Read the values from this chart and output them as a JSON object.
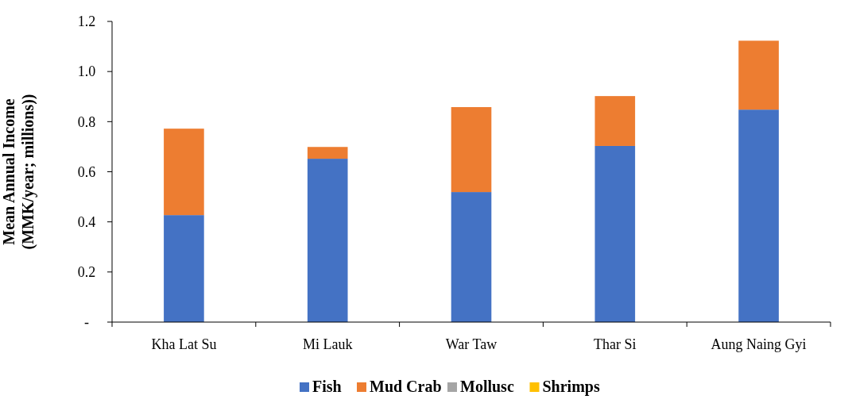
{
  "chart_data": {
    "type": "bar",
    "stacked": true,
    "ylabel": "Mean Annual Income (MMK/year; millions))",
    "categories": [
      "Kha Lat Su",
      "Mi Lauk",
      "War Taw",
      "Thar Si",
      "Aung Naing Gyi"
    ],
    "series": [
      {
        "name": "Fish",
        "color": "#4472c4",
        "values": [
          0.427,
          0.652,
          0.519,
          0.703,
          0.848
        ]
      },
      {
        "name": "Mud Crab",
        "color": "#ed7d31",
        "values": [
          0.345,
          0.047,
          0.339,
          0.199,
          0.275
        ]
      },
      {
        "name": "Mollusc",
        "color": "#a5a5a5",
        "values": [
          0,
          0,
          0,
          0,
          0
        ]
      },
      {
        "name": "Shrimps",
        "color": "#ffc000",
        "values": [
          0,
          0,
          0,
          0,
          0
        ]
      }
    ],
    "ylim": [
      0,
      1.2
    ],
    "yticks": [
      {
        "value": 0,
        "label": "-"
      },
      {
        "value": 0.2,
        "label": "0.2"
      },
      {
        "value": 0.4,
        "label": "0.4"
      },
      {
        "value": 0.6,
        "label": "0.6"
      },
      {
        "value": 0.8,
        "label": "0.8"
      },
      {
        "value": 1,
        "label": "1.0"
      },
      {
        "value": 1.2,
        "label": "1.2"
      }
    ],
    "grid": false,
    "legend": "bottom"
  }
}
